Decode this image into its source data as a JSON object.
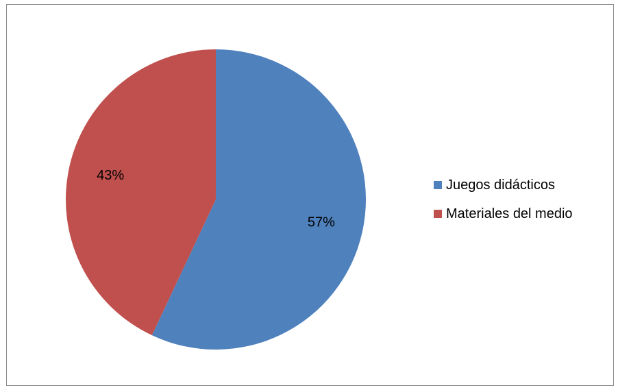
{
  "chart_data": {
    "type": "pie",
    "title": "",
    "legend_position": "right",
    "slices": [
      {
        "label": "Juegos didácticos",
        "value": 57,
        "value_label": "57%",
        "color": "#4F81BD"
      },
      {
        "label": "Materiales del medio",
        "value": 43,
        "value_label": "43%",
        "color": "#C0504D"
      }
    ]
  }
}
